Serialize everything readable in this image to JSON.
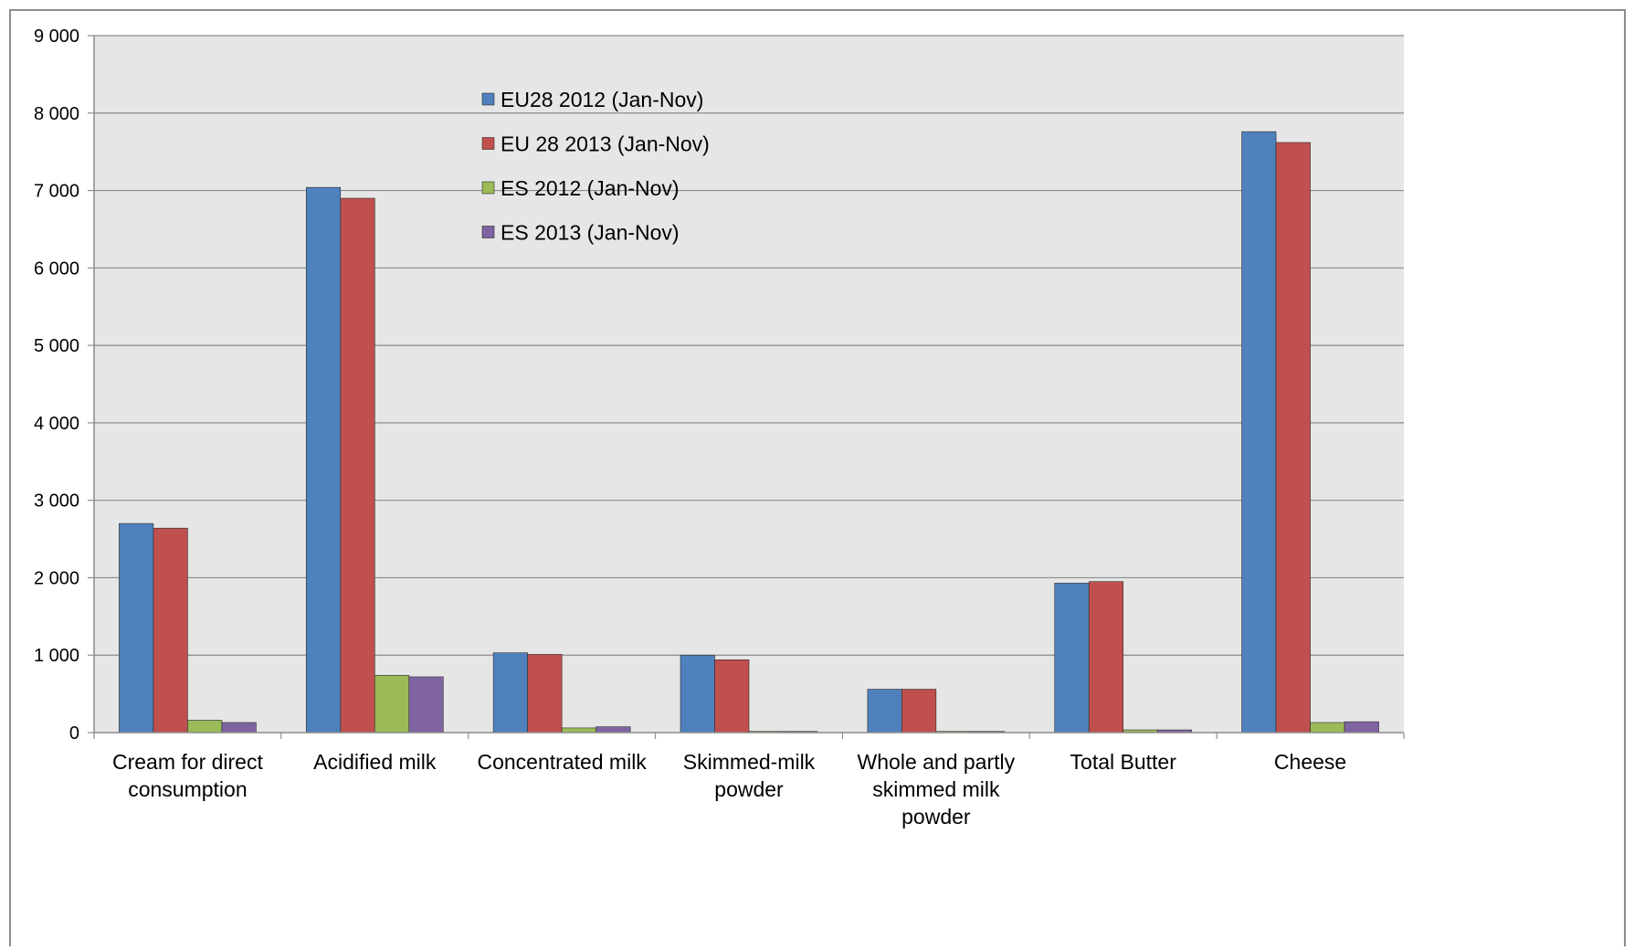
{
  "chart_data": {
    "type": "bar",
    "title": "",
    "xlabel": "",
    "ylabel": "",
    "ylim": [
      0,
      9000
    ],
    "yticks": [
      0,
      1000,
      2000,
      3000,
      4000,
      5000,
      6000,
      7000,
      8000,
      9000
    ],
    "ytick_labels": [
      "0",
      "1 000",
      "2 000",
      "3 000",
      "4 000",
      "5 000",
      "6 000",
      "7 000",
      "8 000",
      "9 000"
    ],
    "grid": true,
    "legend_position": "top-center",
    "categories": [
      [
        "Cream for direct",
        "consumption"
      ],
      [
        "Acidified milk"
      ],
      [
        "Concentrated milk"
      ],
      [
        "Skimmed-milk",
        "powder"
      ],
      [
        "Whole and partly",
        "skimmed milk",
        "powder"
      ],
      [
        "Total Butter"
      ],
      [
        "Cheese"
      ]
    ],
    "series": [
      {
        "name": "EU28 2012 (Jan-Nov)",
        "color": "#4f81bd",
        "values": [
          2700,
          7040,
          1030,
          1000,
          560,
          1930,
          7760
        ]
      },
      {
        "name": "EU 28 2013 (Jan-Nov)",
        "color": "#c0504d",
        "values": [
          2640,
          6900,
          1010,
          940,
          560,
          1950,
          7620
        ]
      },
      {
        "name": "ES 2012 (Jan-Nov)",
        "color": "#9bbb59",
        "values": [
          160,
          740,
          60,
          15,
          15,
          35,
          130
        ]
      },
      {
        "name": "ES 2013 (Jan-Nov)",
        "color": "#8064a2",
        "values": [
          130,
          720,
          75,
          15,
          15,
          35,
          140
        ]
      }
    ],
    "plot_background": "#e6e6e6",
    "gridline_color": "#8c8c8c"
  }
}
